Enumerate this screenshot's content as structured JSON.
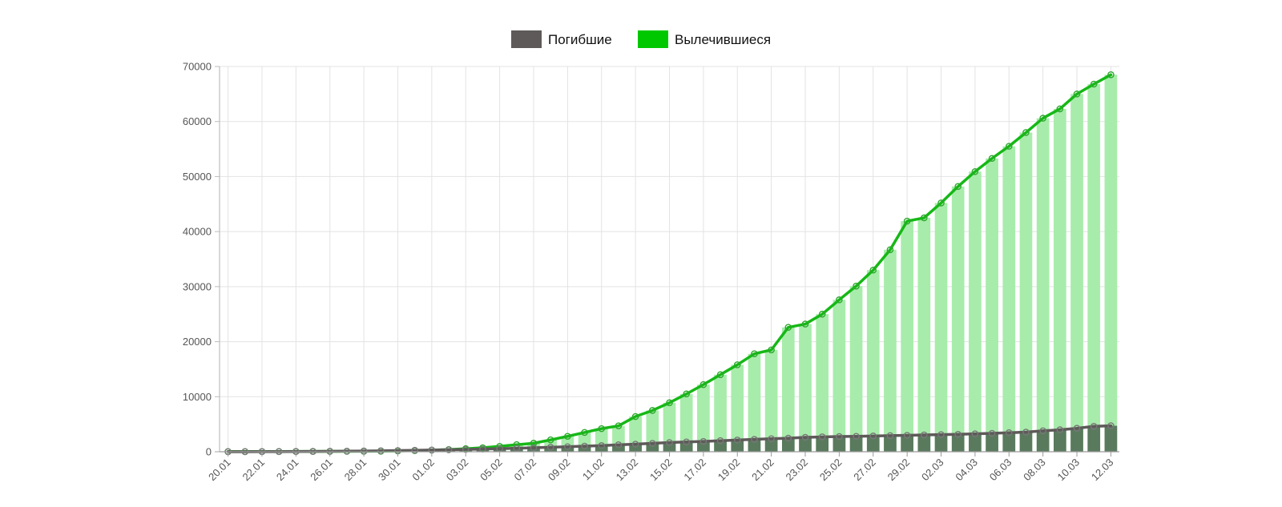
{
  "chart_data": {
    "type": "bar",
    "title": "",
    "xlabel": "",
    "ylabel": "",
    "ylim": [
      0,
      70000
    ],
    "y_ticks": [
      0,
      10000,
      20000,
      30000,
      40000,
      50000,
      60000,
      70000
    ],
    "grid": true,
    "legend_position": "top-center",
    "x_tick_labels": [
      "20.01",
      "22.01",
      "24.01",
      "26.01",
      "28.01",
      "30.01",
      "01.02",
      "03.02",
      "05.02",
      "07.02",
      "09.02",
      "11.02",
      "13.02",
      "15.02",
      "17.02",
      "19.02",
      "21.02",
      "23.02",
      "25.02",
      "27.02",
      "29.02",
      "02.03",
      "04.03",
      "06.03",
      "08.03",
      "10.03",
      "12.03"
    ],
    "x": [
      "20.01",
      "21.01",
      "22.01",
      "23.01",
      "24.01",
      "25.01",
      "26.01",
      "27.01",
      "28.01",
      "29.01",
      "30.01",
      "31.01",
      "01.02",
      "02.02",
      "03.02",
      "04.02",
      "05.02",
      "06.02",
      "07.02",
      "08.02",
      "09.02",
      "10.02",
      "11.02",
      "12.02",
      "13.02",
      "14.02",
      "15.02",
      "16.02",
      "17.02",
      "18.02",
      "19.02",
      "20.02",
      "21.02",
      "22.02",
      "23.02",
      "24.02",
      "25.02",
      "26.02",
      "27.02",
      "28.02",
      "29.02",
      "01.03",
      "02.03",
      "03.03",
      "04.03",
      "05.03",
      "06.03",
      "07.03",
      "08.03",
      "09.03",
      "10.03",
      "11.03",
      "12.03"
    ],
    "series": [
      {
        "name": "Погибшие",
        "color": "#5e5a59",
        "values": [
          6,
          9,
          17,
          25,
          41,
          56,
          80,
          106,
          132,
          170,
          213,
          259,
          304,
          362,
          426,
          492,
          565,
          638,
          724,
          813,
          910,
          1018,
          1115,
          1261,
          1383,
          1526,
          1669,
          1775,
          1873,
          2009,
          2126,
          2247,
          2360,
          2460,
          2618,
          2699,
          2763,
          2800,
          2858,
          2923,
          2977,
          3050,
          3110,
          3160,
          3254,
          3348,
          3460,
          3558,
          3802,
          3988,
          4262,
          4615,
          4720
        ]
      },
      {
        "name": "Вылечившиеся",
        "color": "#00c800",
        "bar_color": "#a8ecab",
        "values": [
          28,
          30,
          32,
          39,
          52,
          60,
          66,
          72,
          85,
          103,
          150,
          200,
          300,
          400,
          550,
          720,
          980,
          1280,
          1550,
          2160,
          2800,
          3500,
          4200,
          4700,
          6400,
          7500,
          8900,
          10500,
          12200,
          14000,
          15800,
          17800,
          18500,
          22600,
          23200,
          25000,
          27600,
          30100,
          33000,
          36700,
          41900,
          42500,
          45200,
          48200,
          50900,
          53300,
          55500,
          58000,
          60600,
          62300,
          65000,
          66800,
          68500
        ]
      }
    ]
  }
}
